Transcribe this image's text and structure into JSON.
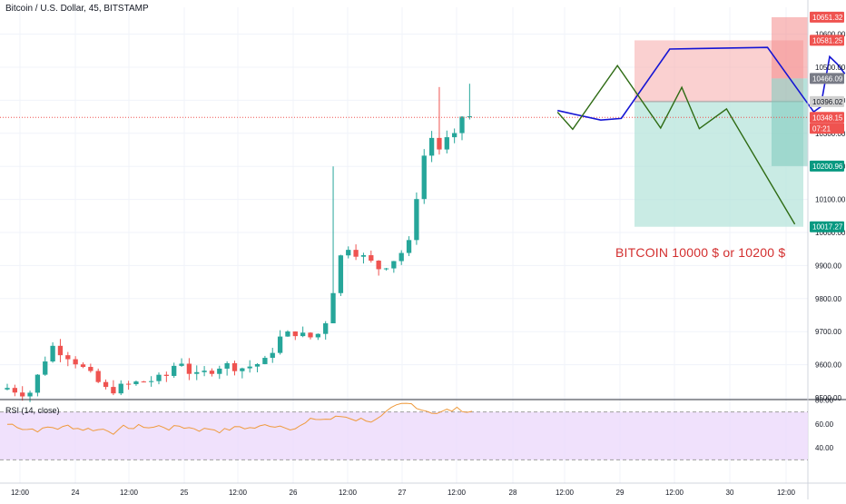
{
  "title": "Bitcoin / U.S. Dollar, 45, BITSTAMP",
  "rsi_title": "RSI (14, close)",
  "annotation": "BITCOIN 10000 $ or  10200 $",
  "colors": {
    "up": "#26a69a",
    "down": "#ef5350",
    "blue_path": "#1515d4",
    "green_path": "#2e6b14",
    "rsi_line": "#ef9a3c",
    "rsi_band": "#ecd9fb"
  },
  "chart_data": [
    {
      "type": "candlestick",
      "title": "Bitcoin / U.S. Dollar, 45, BITSTAMP",
      "ylim": [
        9500,
        10700
      ],
      "y_ticks": [
        "10600.00",
        "10500.00",
        "10400.00",
        "10300.00",
        "10200.00",
        "10100.00",
        "10000.00",
        "9900.00",
        "9800.00",
        "9700.00",
        "9600.00",
        "9500.00"
      ],
      "x_ticks": [
        "12:00",
        "24",
        "12:00",
        "25",
        "12:00",
        "26",
        "12:00",
        "27",
        "12:00",
        "28",
        "12:00",
        "29",
        "12:00",
        "30",
        "12:00"
      ],
      "price_labels": [
        {
          "text": "10651.32",
          "color": "#ef5350"
        },
        {
          "text": "10581.25",
          "color": "#ef5350"
        },
        {
          "text": "10466.09",
          "color": "#787b86"
        },
        {
          "text": "10396.02",
          "color": "#d0d0d0"
        },
        {
          "text": "10348.15",
          "color": "#ef5350"
        },
        {
          "text": "07:21",
          "color": "#ef5350"
        },
        {
          "text": "10200.96",
          "color": "#089981"
        },
        {
          "text": "10017.27",
          "color": "#089981"
        }
      ],
      "last_price": 10348.15,
      "position_entry": 10396.02,
      "position_stop": 10581.25,
      "position_target": 10017.27,
      "position2_top": 10651.32,
      "position2_mid": 10466.09,
      "position2_low": 10200.96,
      "projection_blue": [
        [
          72.6,
          10369
        ],
        [
          78.3,
          10340
        ],
        [
          81.0,
          10345
        ],
        [
          87.4,
          10555
        ],
        [
          100.3,
          10560
        ],
        [
          106.4,
          10365
        ],
        [
          107.3,
          10380
        ],
        [
          108.5,
          10532
        ],
        [
          109.5,
          10510
        ],
        [
          110.5,
          10480
        ]
      ],
      "projection_green": [
        [
          72.6,
          10364
        ],
        [
          74.6,
          10312
        ],
        [
          80.5,
          10505
        ],
        [
          86.2,
          10316
        ],
        [
          89.0,
          10439
        ],
        [
          91.3,
          10314
        ],
        [
          94.9,
          10374
        ],
        [
          103.9,
          10025
        ]
      ]
    },
    {
      "type": "line",
      "title": "RSI (14, close)",
      "ylim": [
        30,
        85
      ],
      "y_ticks": [
        "80.00",
        "60.00",
        "40.00"
      ],
      "band": [
        30,
        70
      ]
    }
  ]
}
